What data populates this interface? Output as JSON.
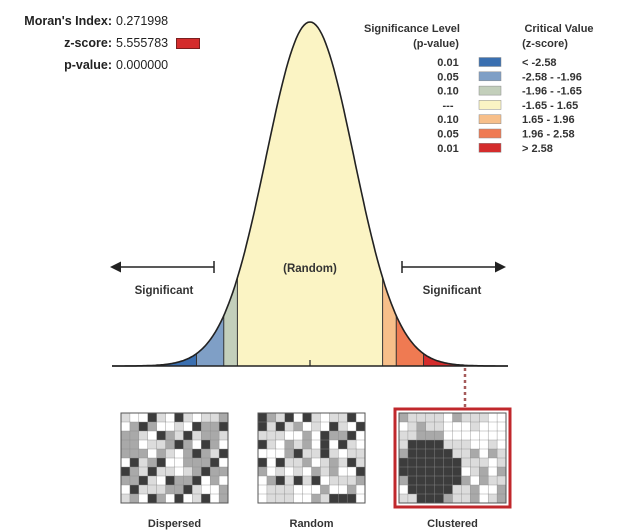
{
  "stats": {
    "morans_index_label": "Moran's Index:",
    "morans_index_value": "0.271998",
    "z_score_label": "z-score:",
    "z_score_value": "5.555783",
    "p_value_label": "p-value:",
    "p_value_value": "0.000000",
    "z_score_swatch_color": "#d42c2c"
  },
  "legend": {
    "header_significance": "Significance Level",
    "header_significance_sub": "(p-value)",
    "header_critical": "Critical Value",
    "header_critical_sub": "(z-score)",
    "rows": [
      {
        "p": "0.01",
        "z": "< -2.58",
        "color": "#3a6fb0"
      },
      {
        "p": "0.05",
        "z": "-2.58 - -1.96",
        "color": "#7f9fc6"
      },
      {
        "p": "0.10",
        "z": "-1.96 - -1.65",
        "color": "#c3cfbb"
      },
      {
        "p": "---",
        "z": "-1.65 - 1.65",
        "color": "#fbf4c4"
      },
      {
        "p": "0.10",
        "z": "1.65 - 1.96",
        "color": "#f7bf8a"
      },
      {
        "p": "0.05",
        "z": "1.96 - 2.58",
        "color": "#ef7a52"
      },
      {
        "p": "0.01",
        "z": "> 2.58",
        "color": "#d42c2c"
      }
    ]
  },
  "curve": {
    "center_label": "(Random)",
    "left_label": "Significant",
    "right_label": "Significant",
    "z_breaks": [
      -2.58,
      -1.96,
      -1.65,
      1.65,
      1.96,
      2.58
    ],
    "observed_z": 5.555783
  },
  "panels": [
    {
      "label": "Dispersed",
      "pattern": "dispersed",
      "highlighted": false
    },
    {
      "label": "Random",
      "pattern": "random",
      "highlighted": false
    },
    {
      "label": "Clustered",
      "pattern": "clustered",
      "highlighted": true
    }
  ],
  "colors": {
    "line": "#222222",
    "highlight_border": "#c0282c",
    "dotted": "#a55a5a",
    "cell_dark": "#3c3c3c",
    "cell_mid": "#a9a9a9",
    "cell_light": "#dcdcdc",
    "cell_white": "#ffffff"
  }
}
